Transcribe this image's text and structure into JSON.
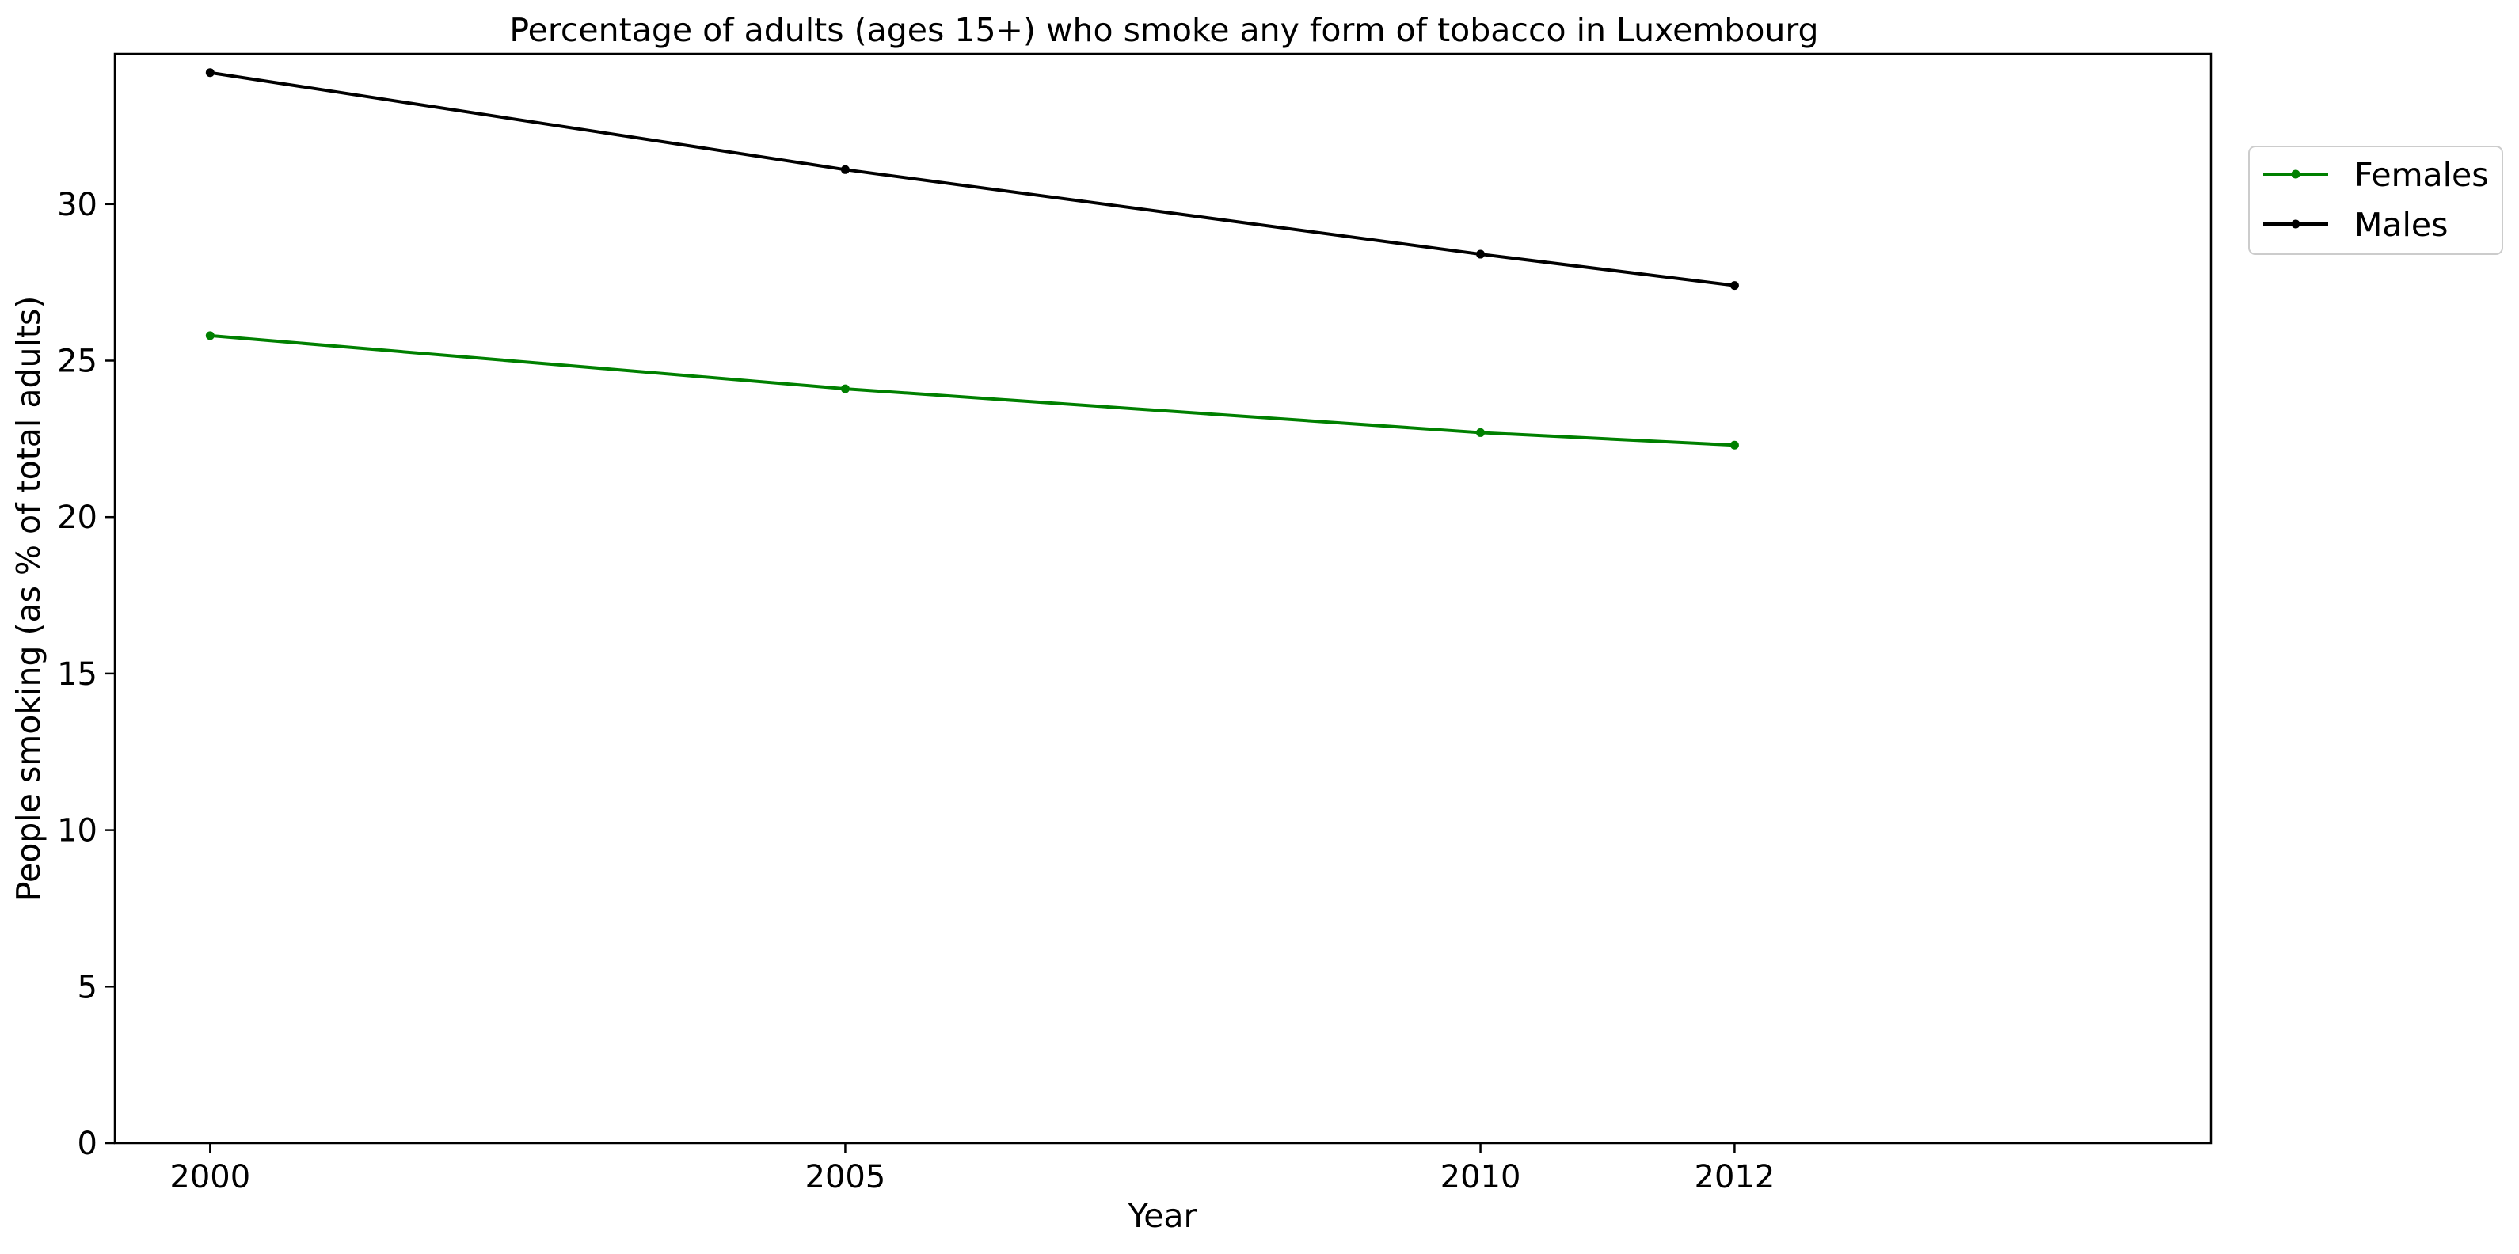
{
  "chart_data": {
    "type": "line",
    "title": "Percentage of adults (ages 15+) who smoke any form of tobacco in Luxembourg",
    "xlabel": "Year",
    "ylabel": "People smoking (as % of total adults)",
    "x": [
      2000,
      2005,
      2010,
      2012
    ],
    "x_tick_labels": [
      "2000",
      "2005",
      "2010",
      "2012"
    ],
    "y_ticks": [
      0,
      5,
      10,
      15,
      20,
      25,
      30
    ],
    "y_tick_labels": [
      "0",
      "5",
      "10",
      "15",
      "20",
      "25",
      "30"
    ],
    "xlim": [
      1999.25,
      2015.75
    ],
    "ylim": [
      0,
      34.8
    ],
    "grid": false,
    "legend_position": "upper right, outside plot",
    "series": [
      {
        "name": "Females",
        "color": "#008000",
        "values": [
          25.8,
          24.1,
          22.7,
          22.3
        ]
      },
      {
        "name": "Males",
        "color": "#000000",
        "values": [
          34.2,
          31.1,
          28.4,
          27.4
        ]
      }
    ]
  }
}
